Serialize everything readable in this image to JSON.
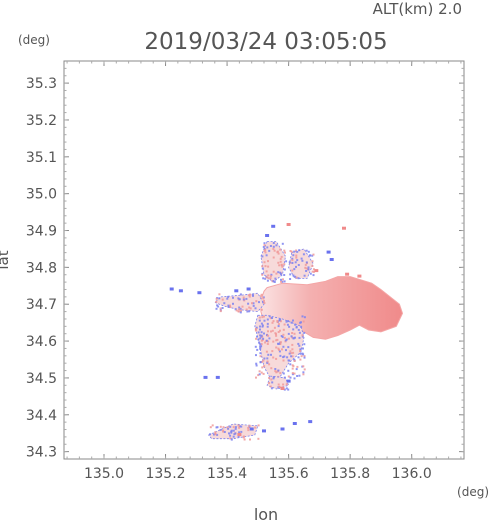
{
  "header": {
    "alt_label": "ALT(km)  2.0",
    "datetime": "2019/03/24  03:05:05",
    "deg_top": "(deg)",
    "deg_bottom": "(deg)"
  },
  "chart_data": {
    "type": "heatmap",
    "xlabel": "lon",
    "ylabel": "lat",
    "xlim": [
      134.87,
      136.17
    ],
    "ylim": [
      34.28,
      35.36
    ],
    "xticks": [
      135.0,
      135.2,
      135.4,
      135.6,
      135.8,
      136.0
    ],
    "xticklabels": [
      "135.0",
      "135.2",
      "135.4",
      "135.6",
      "135.8",
      "136.0"
    ],
    "yticks": [
      34.3,
      34.4,
      34.5,
      34.6,
      34.7,
      34.8,
      34.9,
      35.0,
      35.1,
      35.2,
      35.3
    ],
    "yticklabels": [
      "34.3",
      "34.4",
      "34.5",
      "34.6",
      "34.7",
      "34.8",
      "34.9",
      "35.0",
      "35.1",
      "35.2",
      "35.3"
    ],
    "grid": false,
    "colors": {
      "positive": "#f08a8a",
      "negative": "#6a72ee",
      "neutral": "#f4c6c6",
      "axis": "#888888"
    },
    "regions": [
      {
        "sign": "pos",
        "polygon": [
          [
            135.53,
            34.745
          ],
          [
            135.58,
            34.757
          ],
          [
            135.66,
            34.753
          ],
          [
            135.72,
            34.762
          ],
          [
            135.76,
            34.775
          ],
          [
            135.8,
            34.775
          ],
          [
            135.84,
            34.765
          ],
          [
            135.87,
            34.757
          ],
          [
            135.9,
            34.74
          ],
          [
            135.93,
            34.72
          ],
          [
            135.96,
            34.7
          ],
          [
            135.97,
            34.675
          ],
          [
            135.95,
            34.64
          ],
          [
            135.9,
            34.625
          ],
          [
            135.86,
            34.63
          ],
          [
            135.83,
            34.643
          ],
          [
            135.8,
            34.63
          ],
          [
            135.76,
            34.615
          ],
          [
            135.72,
            34.605
          ],
          [
            135.68,
            34.61
          ],
          [
            135.65,
            34.625
          ],
          [
            135.6,
            34.632
          ],
          [
            135.55,
            34.632
          ],
          [
            135.52,
            34.65
          ],
          [
            135.51,
            34.68
          ],
          [
            135.51,
            34.71
          ],
          [
            135.52,
            34.735
          ]
        ]
      },
      {
        "sign": "mixed",
        "polygon": [
          [
            135.5,
            34.67
          ],
          [
            135.53,
            34.67
          ],
          [
            135.58,
            34.66
          ],
          [
            135.64,
            34.64
          ],
          [
            135.65,
            34.61
          ],
          [
            135.64,
            34.57
          ],
          [
            135.6,
            34.54
          ],
          [
            135.57,
            34.5
          ],
          [
            135.54,
            34.5
          ],
          [
            135.52,
            34.53
          ],
          [
            135.51,
            34.57
          ],
          [
            135.5,
            34.61
          ],
          [
            135.49,
            34.64
          ]
        ]
      },
      {
        "sign": "mixed",
        "polygon": [
          [
            135.38,
            34.72
          ],
          [
            135.45,
            34.725
          ],
          [
            135.5,
            34.73
          ],
          [
            135.52,
            34.7
          ],
          [
            135.5,
            34.68
          ],
          [
            135.44,
            34.685
          ],
          [
            135.39,
            34.695
          ],
          [
            135.36,
            34.705
          ]
        ]
      },
      {
        "sign": "mixed",
        "polygon": [
          [
            135.53,
            34.87
          ],
          [
            135.56,
            34.87
          ],
          [
            135.59,
            34.83
          ],
          [
            135.58,
            34.78
          ],
          [
            135.55,
            34.76
          ],
          [
            135.52,
            34.78
          ],
          [
            135.51,
            34.83
          ]
        ]
      },
      {
        "sign": "mixed",
        "polygon": [
          [
            135.61,
            34.84
          ],
          [
            135.65,
            34.85
          ],
          [
            135.68,
            34.81
          ],
          [
            135.66,
            34.77
          ],
          [
            135.62,
            34.77
          ],
          [
            135.6,
            34.8
          ]
        ]
      },
      {
        "sign": "mixed",
        "polygon": [
          [
            135.34,
            34.345
          ],
          [
            135.42,
            34.375
          ],
          [
            135.5,
            34.37
          ],
          [
            135.49,
            34.345
          ],
          [
            135.42,
            34.335
          ],
          [
            135.35,
            34.335
          ]
        ]
      },
      {
        "sign": "mixed",
        "polygon": [
          [
            135.54,
            34.505
          ],
          [
            135.59,
            34.5
          ],
          [
            135.6,
            34.48
          ],
          [
            135.56,
            34.47
          ],
          [
            135.53,
            34.48
          ]
        ]
      }
    ],
    "speckles": [
      {
        "lon": 135.55,
        "lat": 34.91,
        "sign": "neg"
      },
      {
        "lon": 135.53,
        "lat": 34.885,
        "sign": "neg"
      },
      {
        "lon": 135.6,
        "lat": 34.915,
        "sign": "pos"
      },
      {
        "lon": 135.78,
        "lat": 34.905,
        "sign": "pos"
      },
      {
        "lon": 135.73,
        "lat": 34.84,
        "sign": "neg"
      },
      {
        "lon": 135.74,
        "lat": 34.82,
        "sign": "neg"
      },
      {
        "lon": 135.79,
        "lat": 34.78,
        "sign": "pos"
      },
      {
        "lon": 135.83,
        "lat": 34.775,
        "sign": "pos"
      },
      {
        "lon": 135.69,
        "lat": 34.79,
        "sign": "pos"
      },
      {
        "lon": 135.47,
        "lat": 34.74,
        "sign": "neg"
      },
      {
        "lon": 135.43,
        "lat": 34.735,
        "sign": "neg"
      },
      {
        "lon": 135.31,
        "lat": 34.73,
        "sign": "neg"
      },
      {
        "lon": 135.25,
        "lat": 34.735,
        "sign": "neg"
      },
      {
        "lon": 135.22,
        "lat": 34.74,
        "sign": "neg"
      },
      {
        "lon": 135.33,
        "lat": 34.5,
        "sign": "neg"
      },
      {
        "lon": 135.37,
        "lat": 34.5,
        "sign": "neg"
      },
      {
        "lon": 135.58,
        "lat": 34.47,
        "sign": "pos"
      },
      {
        "lon": 135.6,
        "lat": 34.49,
        "sign": "neg"
      },
      {
        "lon": 135.58,
        "lat": 34.36,
        "sign": "neg"
      },
      {
        "lon": 135.62,
        "lat": 34.375,
        "sign": "neg"
      },
      {
        "lon": 135.67,
        "lat": 34.38,
        "sign": "neg"
      },
      {
        "lon": 135.44,
        "lat": 34.345,
        "sign": "pos"
      },
      {
        "lon": 135.48,
        "lat": 34.36,
        "sign": "neg"
      },
      {
        "lon": 135.52,
        "lat": 34.355,
        "sign": "neg"
      }
    ]
  }
}
